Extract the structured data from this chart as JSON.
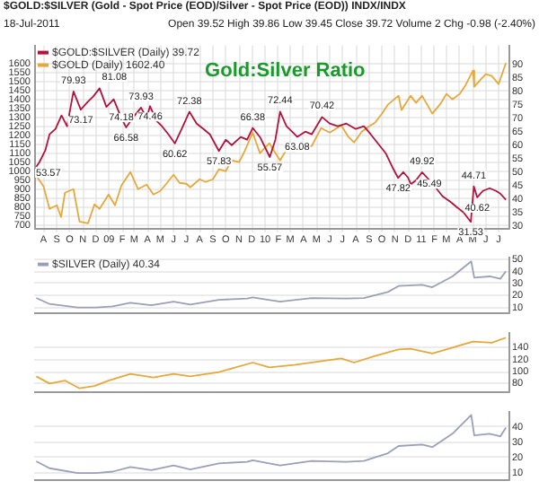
{
  "chart_data": [
    {
      "type": "line",
      "title": "$GOLD:$SILVER (Gold - Spot Price (EOD)/Silver - Spot Price (EOD)) INDX/INDX",
      "subtitle": "18-Jul-2011",
      "annotations": [
        "Open 39.52  High 39.86  Low 39.45  Close 39.72  Volume 2  Chg -0.98 (-2.40%)",
        "Gold:Silver Ratio"
      ],
      "legend": "top left",
      "grid": true,
      "tick_labels": "xy",
      "xlim": [
        "2008-07-10",
        "2011-07-24"
      ],
      "xticks": [
        {
          "value": "2008-08-01",
          "label": "A"
        },
        {
          "value": "2008-09-01",
          "label": "S"
        },
        {
          "value": "2008-10-01",
          "label": "O"
        },
        {
          "value": "2008-11-01",
          "label": "N"
        },
        {
          "value": "2008-12-01",
          "label": "D"
        },
        {
          "value": "2009-01-01",
          "label": "09"
        },
        {
          "value": "2009-02-01",
          "label": "F"
        },
        {
          "value": "2009-03-01",
          "label": "M"
        },
        {
          "value": "2009-04-01",
          "label": "A"
        },
        {
          "value": "2009-05-01",
          "label": "M"
        },
        {
          "value": "2009-06-01",
          "label": "J"
        },
        {
          "value": "2009-07-01",
          "label": "J"
        },
        {
          "value": "2009-08-01",
          "label": "A"
        },
        {
          "value": "2009-09-01",
          "label": "S"
        },
        {
          "value": "2009-10-01",
          "label": "O"
        },
        {
          "value": "2009-11-01",
          "label": "N"
        },
        {
          "value": "2009-12-01",
          "label": "D"
        },
        {
          "value": "2010-01-01",
          "label": "10"
        },
        {
          "value": "2010-02-01",
          "label": "F"
        },
        {
          "value": "2010-03-01",
          "label": "M"
        },
        {
          "value": "2010-04-01",
          "label": "A"
        },
        {
          "value": "2010-05-01",
          "label": "M"
        },
        {
          "value": "2010-06-01",
          "label": "J"
        },
        {
          "value": "2010-07-01",
          "label": "J"
        },
        {
          "value": "2010-08-01",
          "label": "A"
        },
        {
          "value": "2010-09-01",
          "label": "S"
        },
        {
          "value": "2010-10-01",
          "label": "O"
        },
        {
          "value": "2010-11-01",
          "label": "N"
        },
        {
          "value": "2010-12-01",
          "label": "D"
        },
        {
          "value": "2011-01-01",
          "label": "11"
        },
        {
          "value": "2011-02-01",
          "label": "F"
        },
        {
          "value": "2011-03-01",
          "label": "M"
        },
        {
          "value": "2011-04-01",
          "label": "A"
        },
        {
          "value": "2011-05-01",
          "label": "M"
        },
        {
          "value": "2011-06-01",
          "label": "J"
        },
        {
          "value": "2011-07-01",
          "label": "J"
        }
      ],
      "ylim": [
        680,
        1700
      ],
      "yticks": [
        700,
        750,
        800,
        850,
        900,
        950,
        1000,
        1050,
        1100,
        1150,
        1200,
        1250,
        1300,
        1350,
        1400,
        1450,
        1500,
        1550,
        1600
      ],
      "y2lim": [
        29,
        97
      ],
      "y2ticks": [
        30,
        35,
        40,
        45,
        50,
        55,
        60,
        65,
        70,
        75,
        80,
        85,
        90
      ],
      "series": [
        {
          "name": "$GOLD:$SILVER (Daily) 39.72",
          "color": "#b3123c",
          "axis": "y2",
          "x": [
            "2008-07-15",
            "2008-07-22",
            "2008-08-05",
            "2008-08-15",
            "2008-08-29",
            "2008-09-12",
            "2008-09-25",
            "2008-10-10",
            "2008-10-27",
            "2008-11-12",
            "2008-11-25",
            "2008-12-10",
            "2008-12-26",
            "2009-01-12",
            "2009-01-30",
            "2009-02-10",
            "2009-02-25",
            "2009-03-17",
            "2009-03-30",
            "2009-04-07",
            "2009-04-22",
            "2009-05-05",
            "2009-05-20",
            "2009-06-04",
            "2009-06-20",
            "2009-07-08",
            "2009-07-25",
            "2009-08-10",
            "2009-08-25",
            "2009-09-15",
            "2009-10-01",
            "2009-10-15",
            "2009-11-05",
            "2009-11-20",
            "2009-12-03",
            "2009-12-20",
            "2010-01-12",
            "2010-01-25",
            "2010-02-05",
            "2010-02-20",
            "2010-03-05",
            "2010-03-17",
            "2010-04-05",
            "2010-04-20",
            "2010-05-14",
            "2010-06-01",
            "2010-06-20",
            "2010-07-10",
            "2010-08-01",
            "2010-08-20",
            "2010-09-05",
            "2010-09-25",
            "2010-10-10",
            "2010-10-25",
            "2010-11-08",
            "2010-11-20",
            "2010-12-01",
            "2010-12-08",
            "2010-12-20",
            "2011-01-03",
            "2011-01-20",
            "2011-02-05",
            "2011-02-20",
            "2011-03-10",
            "2011-03-25",
            "2011-04-10",
            "2011-04-27",
            "2011-05-04",
            "2011-05-12",
            "2011-05-25",
            "2011-06-10",
            "2011-06-25",
            "2011-07-05",
            "2011-07-18"
          ],
          "values": [
            52,
            53.57,
            58,
            64,
            66,
            71,
            67,
            79.93,
            73.17,
            76,
            78,
            81.08,
            74.18,
            77,
            70,
            66.58,
            70,
            73.93,
            70,
            74.46,
            69,
            67,
            64,
            60.62,
            66,
            72.38,
            68,
            66,
            64,
            57.83,
            62,
            60,
            63,
            62,
            66.38,
            63,
            55.57,
            62,
            72.44,
            67,
            65,
            63.08,
            65,
            64,
            70.42,
            68,
            67,
            68,
            66,
            67,
            64,
            60,
            57,
            52,
            47.82,
            50,
            48,
            45.49,
            47,
            49.92,
            47,
            44,
            41,
            39,
            37,
            35,
            31.53,
            44.71,
            40.62,
            43,
            44,
            43,
            42,
            39.72
          ],
          "value_labels": [
            null,
            "53.57",
            null,
            null,
            null,
            null,
            null,
            "79.93",
            "73.17",
            null,
            null,
            "81.08",
            "74.18",
            null,
            null,
            "66.58",
            null,
            "73.93",
            null,
            "74.46",
            null,
            null,
            null,
            "60.62",
            null,
            "72.38",
            null,
            null,
            null,
            "57.83",
            null,
            null,
            null,
            null,
            "66.38",
            null,
            "55.57",
            null,
            "72.44",
            null,
            null,
            "63.08",
            null,
            null,
            "70.42",
            null,
            null,
            null,
            null,
            null,
            null,
            null,
            null,
            null,
            "47.82",
            null,
            null,
            "45.49",
            null,
            "49.92",
            null,
            null,
            null,
            null,
            null,
            null,
            "31.53",
            "44.71",
            "40.62",
            null,
            null,
            null,
            null,
            null
          ]
        },
        {
          "name": "$GOLD (Daily) 1602.40",
          "color": "#e6a83a",
          "axis": "y",
          "x": [
            "2008-07-15",
            "2008-08-01",
            "2008-08-15",
            "2008-09-01",
            "2008-09-11",
            "2008-09-20",
            "2008-10-10",
            "2008-10-24",
            "2008-11-13",
            "2008-11-28",
            "2008-12-10",
            "2008-12-31",
            "2009-01-15",
            "2009-01-30",
            "2009-02-20",
            "2009-03-10",
            "2009-03-30",
            "2009-04-15",
            "2009-05-01",
            "2009-05-15",
            "2009-06-01",
            "2009-06-15",
            "2009-07-01",
            "2009-07-10",
            "2009-08-01",
            "2009-08-15",
            "2009-09-01",
            "2009-09-15",
            "2009-10-01",
            "2009-10-15",
            "2009-11-01",
            "2009-11-15",
            "2009-12-03",
            "2009-12-20",
            "2010-01-11",
            "2010-02-05",
            "2010-02-20",
            "2010-03-10",
            "2010-04-01",
            "2010-04-20",
            "2010-05-12",
            "2010-06-01",
            "2010-06-28",
            "2010-07-15",
            "2010-07-28",
            "2010-08-15",
            "2010-09-01",
            "2010-09-15",
            "2010-10-01",
            "2010-10-15",
            "2010-11-09",
            "2010-11-16",
            "2010-12-07",
            "2010-12-20",
            "2011-01-03",
            "2011-01-27",
            "2011-02-15",
            "2011-03-01",
            "2011-03-15",
            "2011-04-01",
            "2011-04-15",
            "2011-05-02",
            "2011-05-05",
            "2011-05-20",
            "2011-06-01",
            "2011-06-15",
            "2011-07-01",
            "2011-07-18"
          ],
          "values": [
            975,
            915,
            790,
            810,
            745,
            880,
            900,
            720,
            710,
            815,
            790,
            870,
            810,
            920,
            995,
            900,
            925,
            870,
            890,
            930,
            980,
            935,
            930,
            910,
            955,
            940,
            955,
            1010,
            1000,
            1060,
            1050,
            1115,
            1215,
            1100,
            1155,
            1060,
            1120,
            1110,
            1125,
            1140,
            1240,
            1215,
            1255,
            1190,
            1160,
            1220,
            1250,
            1270,
            1320,
            1370,
            1420,
            1340,
            1420,
            1380,
            1420,
            1320,
            1375,
            1430,
            1400,
            1430,
            1480,
            1560,
            1470,
            1510,
            1540,
            1530,
            1485,
            1602
          ]
        }
      ]
    },
    {
      "type": "line",
      "legend": "top left",
      "grid": true,
      "tick_labels": "y",
      "xlim": [
        "2008-07-10",
        "2011-07-24"
      ],
      "ylim": [
        5,
        52
      ],
      "yticks": [
        10,
        20,
        30,
        40,
        50
      ],
      "series": [
        {
          "name": "$SILVER (Daily) 40.34",
          "color": "#9aa0b8",
          "x": [
            "2008-07-15",
            "2008-08-15",
            "2008-10-20",
            "2008-12-01",
            "2009-01-10",
            "2009-02-20",
            "2009-04-10",
            "2009-06-01",
            "2009-07-10",
            "2009-09-15",
            "2009-11-20",
            "2009-12-03",
            "2010-02-05",
            "2010-04-20",
            "2010-07-10",
            "2010-08-20",
            "2010-10-15",
            "2010-11-09",
            "2011-01-03",
            "2011-01-27",
            "2011-03-15",
            "2011-04-28",
            "2011-05-05",
            "2011-06-10",
            "2011-07-05",
            "2011-07-18"
          ],
          "values": [
            18,
            13,
            10,
            10,
            11,
            14,
            12,
            15,
            12.5,
            16.5,
            17.5,
            18.5,
            15,
            18,
            17.5,
            18,
            23,
            28,
            29,
            27,
            36,
            48.5,
            35,
            36,
            34,
            40.34
          ]
        }
      ]
    },
    {
      "type": "line",
      "grid": true,
      "tick_labels": "y",
      "xlim": [
        "2008-07-10",
        "2011-07-24"
      ],
      "ylim": [
        65,
        165
      ],
      "yticks": [
        80,
        100,
        120,
        140
      ],
      "series": [
        {
          "color": "#e6a83a",
          "x": [
            "2008-07-15",
            "2008-08-15",
            "2008-09-20",
            "2008-10-24",
            "2008-11-28",
            "2008-12-31",
            "2009-02-20",
            "2009-04-15",
            "2009-06-01",
            "2009-07-10",
            "2009-09-15",
            "2009-12-03",
            "2010-01-11",
            "2010-03-10",
            "2010-06-28",
            "2010-07-28",
            "2010-09-15",
            "2010-11-09",
            "2010-12-07",
            "2011-01-27",
            "2011-03-15",
            "2011-05-02",
            "2011-06-15",
            "2011-07-18"
          ],
          "values": [
            92,
            80,
            85,
            72,
            76,
            85,
            96,
            90,
            96,
            92,
            99,
            115,
            107,
            111,
            122,
            115,
            126,
            137,
            138,
            130,
            140,
            150,
            148,
            156.57
          ]
        }
      ]
    },
    {
      "type": "line",
      "grid": true,
      "tick_labels": "xy",
      "xlim": [
        "2008-07-10",
        "2011-07-24"
      ],
      "ylim": [
        5,
        50
      ],
      "yticks": [
        10,
        20,
        30,
        40
      ],
      "series": [
        {
          "color": "#9aa0b8",
          "x": [
            "2008-07-15",
            "2008-08-15",
            "2008-10-20",
            "2008-12-01",
            "2009-01-10",
            "2009-02-20",
            "2009-04-10",
            "2009-06-01",
            "2009-07-10",
            "2009-09-15",
            "2009-11-20",
            "2009-12-03",
            "2010-02-05",
            "2010-04-20",
            "2010-07-10",
            "2010-08-20",
            "2010-10-15",
            "2010-11-09",
            "2011-01-03",
            "2011-01-27",
            "2011-03-15",
            "2011-04-28",
            "2011-05-05",
            "2011-06-10",
            "2011-07-05",
            "2011-07-18"
          ],
          "values": [
            17.5,
            13,
            9.8,
            9.8,
            10.8,
            13.8,
            11.8,
            14.8,
            12.2,
            16.2,
            17.2,
            18.2,
            14.8,
            17.8,
            17.2,
            17.8,
            22.8,
            27.5,
            28.5,
            26.8,
            35.5,
            47.8,
            34.5,
            35.5,
            33.8,
            39.47
          ]
        }
      ]
    }
  ]
}
